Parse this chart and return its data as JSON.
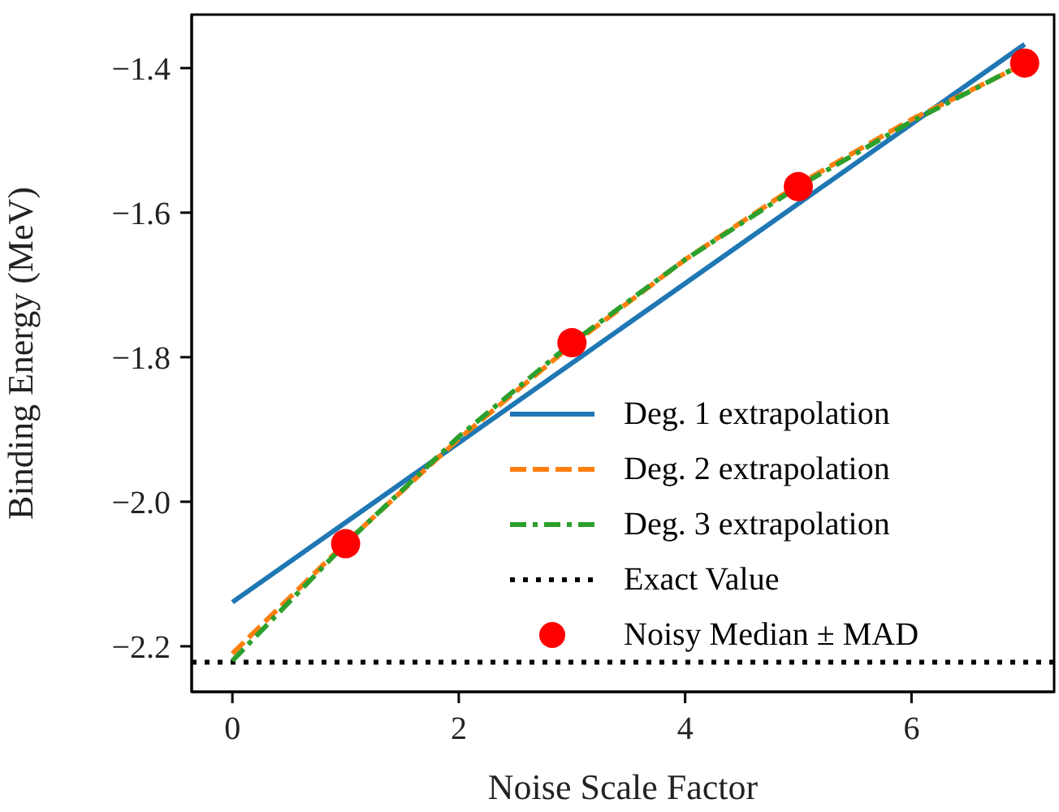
{
  "chart_data": {
    "type": "line",
    "xlabel": "Noise Scale Factor",
    "ylabel": "Binding Energy (MeV)",
    "xlim": [
      -0.36,
      7.26
    ],
    "xticks": [
      0,
      2,
      4,
      6
    ],
    "ylim": [
      -2.263,
      -1.326
    ],
    "yticks": [
      {
        "value": -2.2,
        "label": "−2.2"
      },
      {
        "value": -2.0,
        "label": "−2.0"
      },
      {
        "value": -1.8,
        "label": "−1.8"
      },
      {
        "value": -1.6,
        "label": "−1.6"
      },
      {
        "value": -1.4,
        "label": "−1.4"
      }
    ],
    "grid": false,
    "legend": "bottom right",
    "series": [
      {
        "name": "Deg. 1 extrapolation",
        "color": "#1f77b4",
        "line_style": "solid",
        "marker": "none",
        "x": [
          0,
          7
        ],
        "values": [
          -2.139,
          -1.367
        ]
      },
      {
        "name": "Deg. 2 extrapolation",
        "color": "#ff7f0e",
        "line_style": "dashed",
        "marker": "none",
        "x": [
          0,
          1,
          2,
          3,
          4,
          5,
          6,
          7
        ],
        "values": [
          -2.21,
          -2.057,
          -1.913,
          -1.783,
          -1.665,
          -1.561,
          -1.471,
          -1.394
        ]
      },
      {
        "name": "Deg. 3 extrapolation",
        "color": "#2ca02c",
        "line_style": "dashdot",
        "marker": "none",
        "x": [
          0,
          1,
          2,
          3,
          4,
          5,
          6,
          7
        ],
        "values": [
          -2.22,
          -2.058,
          -1.91,
          -1.78,
          -1.665,
          -1.564,
          -1.474,
          -1.393
        ]
      },
      {
        "name": "Noisy Median ± MAD",
        "type": "scatter",
        "color": "#ff0000",
        "marker": "circle",
        "x": [
          1,
          3,
          5,
          7
        ],
        "values": [
          -2.058,
          -1.78,
          -1.564,
          -1.393
        ]
      }
    ],
    "ref_lines": [
      {
        "axis": "y",
        "value": -2.222,
        "label": "Exact Value",
        "color": "#000000",
        "line_style": "dotted"
      }
    ]
  }
}
